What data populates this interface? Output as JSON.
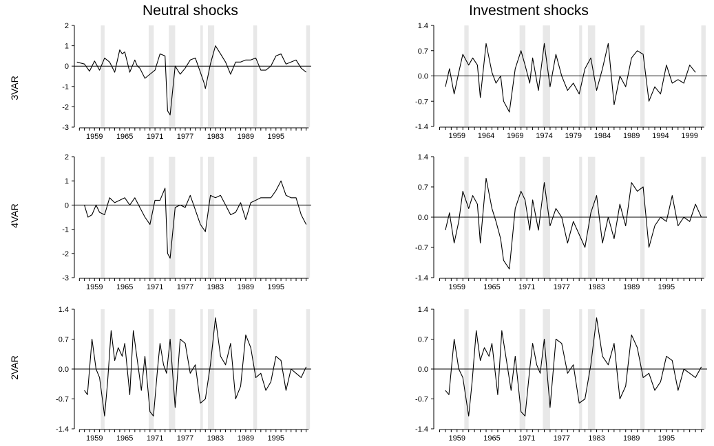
{
  "column_titles": [
    "Neutral shocks",
    "Investment shocks"
  ],
  "row_labels": [
    "3VAR",
    "4VAR",
    "2VAR"
  ],
  "recession_shade_color": "#e8e8e8",
  "line_color": "#000000",
  "chart_data": [
    {
      "type": "line",
      "panel": "neutral-3VAR",
      "ylim": [
        -3,
        2
      ],
      "yticks": [
        "2",
        "1",
        "0",
        "-1",
        "-2",
        "-3"
      ],
      "ytick_values": [
        2,
        1,
        0,
        -1,
        -2,
        -3
      ],
      "xlim": [
        1955,
        2002
      ],
      "xticks": [
        "1959",
        "1965",
        "1971",
        "1977",
        "1983",
        "1989",
        "1995"
      ],
      "xtick_values": [
        1959,
        1965,
        1971,
        1977,
        1983,
        1989,
        1995
      ],
      "zero_line": true,
      "recessions": [
        [
          1960.25,
          1961.0
        ],
        [
          1969.75,
          1970.75
        ],
        [
          1973.75,
          1975.0
        ],
        [
          1980.0,
          1980.5
        ],
        [
          1981.5,
          1982.75
        ],
        [
          1990.5,
          1991.25
        ],
        [
          2001.0,
          2001.75
        ]
      ],
      "series": [
        {
          "x": [
            1955.5,
            1957,
            1958,
            1959,
            1960,
            1961,
            1962,
            1963,
            1964,
            1964.5,
            1965,
            1966,
            1967,
            1967.5,
            1968,
            1969,
            1970,
            1971,
            1972,
            1973,
            1973.5,
            1974,
            1975,
            1976,
            1977,
            1978,
            1979,
            1980,
            1980.7,
            1981,
            1982,
            1983,
            1984,
            1985,
            1986,
            1987,
            1988,
            1989,
            1990,
            1991,
            1992,
            1993,
            1994,
            1995,
            1996,
            1997,
            1998,
            1999,
            2000,
            2001
          ],
          "y": [
            0.2,
            0.1,
            -0.25,
            0.25,
            -0.2,
            0.4,
            0.2,
            -0.3,
            0.8,
            0.6,
            0.7,
            -0.3,
            0.3,
            0.0,
            -0.1,
            -0.6,
            -0.4,
            -0.2,
            0.6,
            0.5,
            -2.2,
            -2.4,
            0.0,
            -0.4,
            -0.1,
            0.3,
            0.4,
            -0.3,
            -0.8,
            -1.1,
            0.1,
            1.0,
            0.6,
            0.2,
            -0.4,
            0.2,
            0.2,
            0.3,
            0.3,
            0.4,
            -0.2,
            -0.2,
            0.0,
            0.5,
            0.6,
            0.1,
            0.2,
            0.3,
            -0.1,
            -0.3
          ]
        }
      ]
    },
    {
      "type": "line",
      "panel": "investment-3VAR",
      "ylim": [
        -1.4,
        1.4
      ],
      "yticks": [
        "1.4",
        "0.7",
        "0.0",
        "-0.7",
        "-1.4"
      ],
      "ytick_values": [
        1.4,
        0.7,
        0.0,
        -0.7,
        -1.4
      ],
      "xlim": [
        1955,
        2002
      ],
      "xticks": [
        "1959",
        "1964",
        "1969",
        "1974",
        "1979",
        "1984",
        "1989",
        "1994",
        "1999"
      ],
      "xtick_values": [
        1959,
        1964,
        1969,
        1974,
        1979,
        1984,
        1989,
        1994,
        1999
      ],
      "zero_line": true,
      "recessions": [
        [
          1960.25,
          1961.0
        ],
        [
          1969.75,
          1970.75
        ],
        [
          1973.75,
          1975.0
        ],
        [
          1980.0,
          1980.5
        ],
        [
          1981.5,
          1982.75
        ],
        [
          1990.5,
          1991.25
        ],
        [
          2001.0,
          2001.75
        ]
      ],
      "series": [
        {
          "x": [
            1957,
            1957.7,
            1958.5,
            1959.3,
            1960,
            1961,
            1961.7,
            1962.5,
            1963,
            1964,
            1965,
            1965.7,
            1966.5,
            1967,
            1968,
            1969,
            1970,
            1970.7,
            1971.5,
            1972,
            1973,
            1974,
            1975,
            1976,
            1977,
            1978,
            1979,
            1980,
            1981,
            1982,
            1983,
            1984,
            1985,
            1986,
            1987,
            1988,
            1989,
            1990,
            1991,
            1992,
            1993,
            1994,
            1995,
            1996,
            1997,
            1998,
            1999,
            2000
          ],
          "y": [
            -0.3,
            0.2,
            -0.5,
            0.1,
            0.6,
            0.3,
            0.5,
            0.3,
            -0.6,
            0.9,
            0.1,
            -0.2,
            0.0,
            -0.7,
            -1.0,
            0.2,
            0.7,
            0.3,
            -0.2,
            0.5,
            -0.4,
            0.9,
            -0.3,
            0.6,
            0.0,
            -0.4,
            -0.2,
            -0.5,
            0.2,
            0.5,
            -0.4,
            0.2,
            0.9,
            -0.8,
            0.0,
            -0.3,
            0.5,
            0.7,
            0.6,
            -0.7,
            -0.3,
            -0.5,
            0.3,
            -0.2,
            -0.1,
            -0.2,
            0.3,
            0.1
          ]
        }
      ]
    },
    {
      "type": "line",
      "panel": "neutral-4VAR",
      "ylim": [
        -3,
        2
      ],
      "yticks": [
        "2",
        "1",
        "0",
        "-1",
        "-2",
        "-3"
      ],
      "ytick_values": [
        2,
        1,
        0,
        -1,
        -2,
        -3
      ],
      "xlim": [
        1955,
        2002
      ],
      "xticks": [
        "1959",
        "1965",
        "1971",
        "1977",
        "1983",
        "1989",
        "1995"
      ],
      "xtick_values": [
        1959,
        1965,
        1971,
        1977,
        1983,
        1989,
        1995
      ],
      "zero_line": true,
      "recessions": [
        [
          1960.25,
          1961.0
        ],
        [
          1969.75,
          1970.75
        ],
        [
          1973.75,
          1975.0
        ],
        [
          1980.0,
          1980.5
        ],
        [
          1981.5,
          1982.75
        ],
        [
          1990.5,
          1991.25
        ],
        [
          2001.0,
          2001.75
        ]
      ],
      "series": [
        {
          "x": [
            1957,
            1957.7,
            1958.5,
            1959.3,
            1960,
            1961,
            1962,
            1963,
            1964,
            1965,
            1966,
            1967,
            1968,
            1969,
            1970,
            1971,
            1972,
            1973,
            1973.5,
            1974,
            1975,
            1976,
            1977,
            1978,
            1979,
            1980,
            1981,
            1982,
            1983,
            1984,
            1985,
            1986,
            1987,
            1988,
            1989,
            1990,
            1991,
            1992,
            1993,
            1994,
            1995,
            1996,
            1997,
            1998,
            1999,
            2000,
            2001
          ],
          "y": [
            0.0,
            -0.5,
            -0.4,
            0.0,
            -0.3,
            -0.4,
            0.3,
            0.1,
            0.2,
            0.3,
            0.0,
            0.3,
            -0.1,
            -0.5,
            -0.8,
            0.2,
            0.2,
            0.7,
            -2.0,
            -2.2,
            -0.1,
            0.0,
            -0.1,
            0.4,
            -0.2,
            -0.8,
            -1.1,
            0.4,
            0.3,
            0.4,
            0.0,
            -0.4,
            -0.3,
            0.1,
            -0.6,
            0.1,
            0.2,
            0.3,
            0.3,
            0.3,
            0.6,
            1.0,
            0.4,
            0.3,
            0.3,
            -0.4,
            -0.8
          ]
        }
      ]
    },
    {
      "type": "line",
      "panel": "investment-4VAR",
      "ylim": [
        -1.4,
        1.4
      ],
      "yticks": [
        "1.4",
        "0.7",
        "0.0",
        "-0.7",
        "-1.4"
      ],
      "ytick_values": [
        1.4,
        0.7,
        0.0,
        -0.7,
        -1.4
      ],
      "xlim": [
        1955,
        2002
      ],
      "xticks": [
        "1959",
        "1965",
        "1971",
        "1977",
        "1983",
        "1989",
        "1995"
      ],
      "xtick_values": [
        1959,
        1965,
        1971,
        1977,
        1983,
        1989,
        1995
      ],
      "zero_line": true,
      "recessions": [
        [
          1960.25,
          1961.0
        ],
        [
          1969.75,
          1970.75
        ],
        [
          1973.75,
          1975.0
        ],
        [
          1980.0,
          1980.5
        ],
        [
          1981.5,
          1982.75
        ],
        [
          1990.5,
          1991.25
        ],
        [
          2001.0,
          2001.75
        ]
      ],
      "series": [
        {
          "x": [
            1957,
            1957.7,
            1958.5,
            1959.3,
            1960,
            1961,
            1961.7,
            1962.5,
            1963,
            1964,
            1965,
            1965.7,
            1966.5,
            1967,
            1968,
            1969,
            1970,
            1970.7,
            1971.5,
            1972,
            1973,
            1974,
            1975,
            1976,
            1977,
            1978,
            1979,
            1980,
            1981,
            1982,
            1983,
            1984,
            1985,
            1986,
            1987,
            1988,
            1989,
            1990,
            1991,
            1992,
            1993,
            1994,
            1995,
            1996,
            1997,
            1998,
            1999,
            2000,
            2001
          ],
          "y": [
            -0.3,
            0.1,
            -0.6,
            -0.1,
            0.6,
            0.2,
            0.5,
            0.3,
            -0.6,
            0.9,
            0.2,
            -0.1,
            -0.5,
            -1.0,
            -1.2,
            0.2,
            0.6,
            0.4,
            -0.3,
            0.4,
            -0.3,
            0.8,
            -0.2,
            0.2,
            0.0,
            -0.6,
            -0.1,
            -0.4,
            -0.7,
            0.1,
            0.5,
            -0.6,
            0.0,
            -0.5,
            0.3,
            -0.2,
            0.8,
            0.6,
            0.7,
            -0.7,
            -0.2,
            0.0,
            -0.1,
            0.5,
            -0.2,
            0.0,
            -0.1,
            0.3,
            0.0
          ]
        }
      ]
    },
    {
      "type": "line",
      "panel": "neutral-2VAR",
      "ylim": [
        -1.4,
        1.4
      ],
      "yticks": [
        "1.4",
        "0.7",
        "0.0",
        "-0.7",
        "-1.4"
      ],
      "ytick_values": [
        1.4,
        0.7,
        0.0,
        -0.7,
        -1.4
      ],
      "xlim": [
        1955,
        2002
      ],
      "xticks": [
        "1959",
        "1965",
        "1971",
        "1977",
        "1983",
        "1989",
        "1995"
      ],
      "xtick_values": [
        1959,
        1965,
        1971,
        1977,
        1983,
        1989,
        1995
      ],
      "zero_line": true,
      "recessions": [
        [
          1960.25,
          1961.0
        ],
        [
          1969.75,
          1970.75
        ],
        [
          1973.75,
          1975.0
        ],
        [
          1980.0,
          1980.5
        ],
        [
          1981.5,
          1982.75
        ],
        [
          1990.5,
          1991.25
        ],
        [
          2001.0,
          2001.75
        ]
      ],
      "series": [
        {
          "x": [
            1957,
            1957.6,
            1958.5,
            1959.3,
            1960,
            1961,
            1961.6,
            1962.3,
            1963,
            1963.7,
            1964.5,
            1965,
            1966,
            1966.7,
            1967.5,
            1968.3,
            1969,
            1970,
            1970.7,
            1971.5,
            1972,
            1972.7,
            1973.3,
            1974,
            1975,
            1976,
            1977,
            1978,
            1979,
            1980,
            1981,
            1982,
            1983,
            1984,
            1985,
            1986,
            1987,
            1988,
            1989,
            1990,
            1991,
            1992,
            1993,
            1994,
            1995,
            1996,
            1997,
            1998,
            1999,
            2000,
            2001
          ],
          "y": [
            -0.5,
            -0.6,
            0.7,
            0.0,
            -0.2,
            -1.1,
            -0.3,
            0.9,
            0.2,
            0.5,
            0.3,
            0.6,
            -0.6,
            0.9,
            0.2,
            -0.5,
            0.3,
            -1.0,
            -1.1,
            0.0,
            0.6,
            0.1,
            -0.1,
            0.7,
            -0.9,
            0.7,
            0.6,
            -0.1,
            0.1,
            -0.8,
            -0.7,
            0.1,
            1.2,
            0.3,
            0.1,
            0.6,
            -0.7,
            -0.4,
            0.8,
            0.5,
            -0.2,
            -0.1,
            -0.5,
            -0.3,
            0.3,
            0.2,
            -0.5,
            0.0,
            -0.1,
            -0.2,
            0.05
          ]
        }
      ]
    },
    {
      "type": "line",
      "panel": "investment-2VAR",
      "ylim": [
        -1.4,
        1.4
      ],
      "yticks": [
        "1.4",
        "0.7",
        "0.0",
        "-0.7",
        "-1.4"
      ],
      "ytick_values": [
        1.4,
        0.7,
        0.0,
        -0.7,
        -1.4
      ],
      "xlim": [
        1955,
        2002
      ],
      "xticks": [
        "1959",
        "1965",
        "1971",
        "1977",
        "1983",
        "1989",
        "1995"
      ],
      "xtick_values": [
        1959,
        1965,
        1971,
        1977,
        1983,
        1989,
        1995
      ],
      "zero_line": true,
      "recessions": [
        [
          1960.25,
          1961.0
        ],
        [
          1969.75,
          1970.75
        ],
        [
          1973.75,
          1975.0
        ],
        [
          1980.0,
          1980.5
        ],
        [
          1981.5,
          1982.75
        ],
        [
          1990.5,
          1991.25
        ],
        [
          2001.0,
          2001.75
        ]
      ],
      "series": [
        {
          "x": [
            1957,
            1957.6,
            1958.5,
            1959.3,
            1960,
            1961,
            1961.6,
            1962.3,
            1963,
            1963.7,
            1964.5,
            1965,
            1966,
            1966.7,
            1967.5,
            1968.3,
            1969,
            1970,
            1970.7,
            1971.5,
            1972,
            1972.7,
            1973.3,
            1974,
            1975,
            1976,
            1977,
            1978,
            1979,
            1980,
            1981,
            1982,
            1983,
            1984,
            1985,
            1986,
            1987,
            1988,
            1989,
            1990,
            1991,
            1992,
            1993,
            1994,
            1995,
            1996,
            1997,
            1998,
            1999,
            2000,
            2001
          ],
          "y": [
            -0.5,
            -0.6,
            0.7,
            0.0,
            -0.2,
            -1.1,
            -0.3,
            0.9,
            0.2,
            0.5,
            0.3,
            0.6,
            -0.6,
            0.9,
            0.2,
            -0.5,
            0.3,
            -1.0,
            -1.1,
            0.0,
            0.6,
            0.1,
            -0.1,
            0.7,
            -0.9,
            0.7,
            0.6,
            -0.1,
            0.1,
            -0.8,
            -0.7,
            0.1,
            1.2,
            0.3,
            0.1,
            0.6,
            -0.7,
            -0.4,
            0.8,
            0.5,
            -0.2,
            -0.1,
            -0.5,
            -0.3,
            0.3,
            0.2,
            -0.5,
            0.0,
            -0.1,
            -0.2,
            0.05
          ]
        }
      ]
    }
  ]
}
